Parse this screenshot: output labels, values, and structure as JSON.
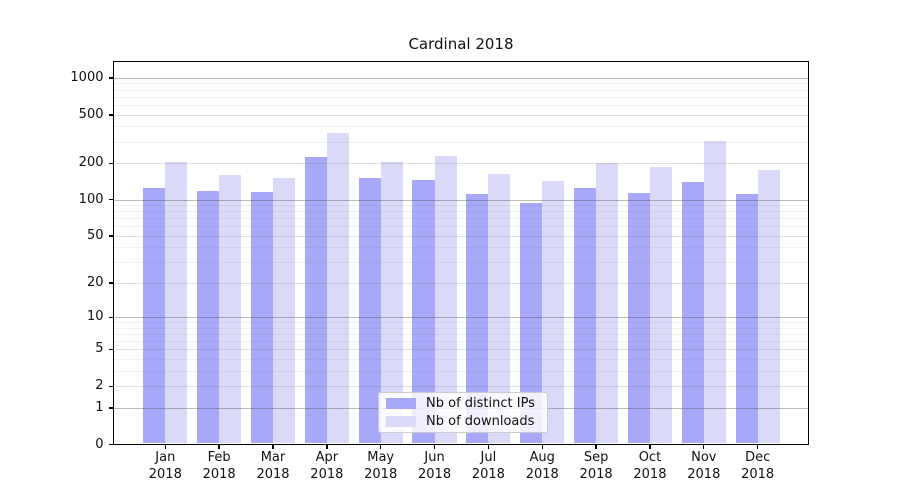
{
  "chart_data": {
    "type": "bar",
    "title": "Cardinal 2018",
    "categories": [
      "Jan",
      "Feb",
      "Mar",
      "Apr",
      "May",
      "Jun",
      "Jul",
      "Aug",
      "Sep",
      "Oct",
      "Nov",
      "Dec"
    ],
    "year": "2018",
    "series": [
      {
        "name": "Nb of distinct IPs",
        "color": "#a8a8f8",
        "values": [
          125,
          117,
          115,
          225,
          151,
          145,
          112,
          94,
          124,
          114,
          140,
          111
        ]
      },
      {
        "name": "Nb of downloads",
        "color": "#dadaf8",
        "values": [
          205,
          159,
          152,
          350,
          205,
          230,
          164,
          143,
          201,
          184,
          305,
          175
        ]
      }
    ],
    "xlabel": "",
    "ylabel": "",
    "y_axis": {
      "scale": "symlog",
      "tick_labels": [
        "0",
        "1",
        "2",
        "5",
        "10",
        "20",
        "50",
        "100",
        "200",
        "500",
        "1000"
      ],
      "ticks": [
        0,
        1,
        2,
        5,
        10,
        20,
        50,
        100,
        200,
        500,
        1000
      ],
      "major_gridlines": [
        1,
        10,
        100,
        1000
      ],
      "labeled_minor_gridlines": [
        2,
        5,
        20,
        50,
        200,
        500
      ],
      "unlabeled_minor_gridlines": [
        3,
        4,
        6,
        7,
        8,
        9,
        30,
        40,
        60,
        70,
        80,
        90,
        300,
        400,
        600,
        700,
        800,
        900
      ],
      "range": [
        0,
        1375
      ]
    },
    "grid": true,
    "legend_position": "lower center"
  }
}
